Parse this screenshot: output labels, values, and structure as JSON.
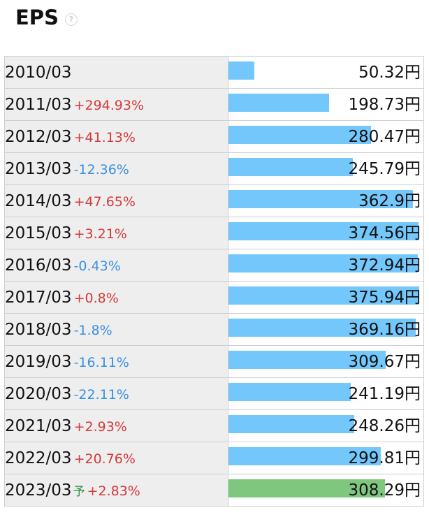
{
  "header": {
    "title": "EPS",
    "help_icon": "question-circle-icon"
  },
  "colors": {
    "bar": "#73c7fa",
    "forecast_bar": "#7fc67e",
    "increase": "#d43a3a",
    "decrease": "#3a8fe0",
    "forecast_mark": "#2e8b3c"
  },
  "chart_data": {
    "type": "bar",
    "title": "EPS",
    "unit": "円",
    "categories": [
      "2010/03",
      "2011/03",
      "2012/03",
      "2013/03",
      "2014/03",
      "2015/03",
      "2016/03",
      "2017/03",
      "2018/03",
      "2019/03",
      "2020/03",
      "2021/03",
      "2022/03",
      "2023/03"
    ],
    "values": [
      50.32,
      198.73,
      280.47,
      245.79,
      362.9,
      374.56,
      372.94,
      375.94,
      369.16,
      309.67,
      241.19,
      248.26,
      299.81,
      308.29
    ],
    "value_labels": [
      "50.32円",
      "198.73円",
      "280.47円",
      "245.79円",
      "362.9円",
      "374.56円",
      "372.94円",
      "375.94円",
      "369.16円",
      "309.67円",
      "241.19円",
      "248.26円",
      "299.81円",
      "308.29円"
    ],
    "changes": [
      "",
      "+294.93%",
      "+41.13%",
      "-12.36%",
      "+47.65%",
      "+3.21%",
      "-0.43%",
      "+0.8%",
      "-1.8%",
      "-16.11%",
      "-22.11%",
      "+2.93%",
      "+20.76%",
      "+2.83%"
    ],
    "forecast_marks": [
      "",
      "",
      "",
      "",
      "",
      "",
      "",
      "",
      "",
      "",
      "",
      "",
      "",
      "予"
    ],
    "xlim": [
      0,
      375.94
    ]
  }
}
